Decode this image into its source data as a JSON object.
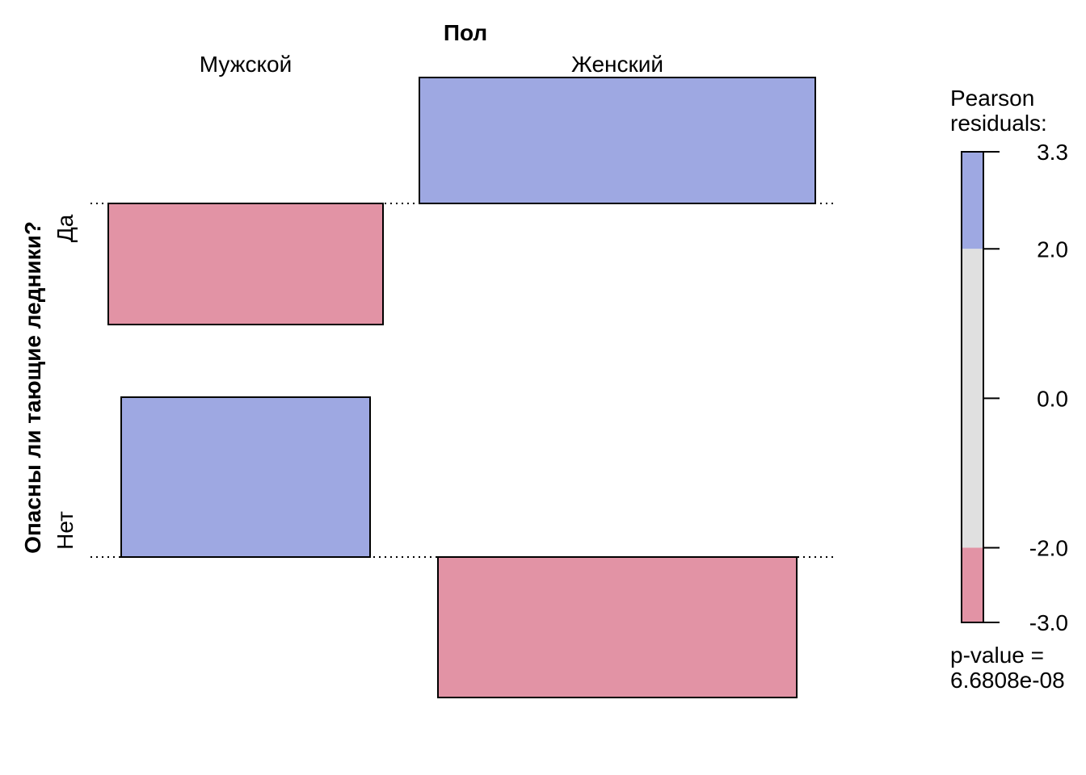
{
  "chart_data": {
    "type": "association",
    "column_variable": "Пол",
    "row_variable": "Опасны ли тающие ледники?",
    "columns": [
      "Мужской",
      "Женский"
    ],
    "rows": [
      "Да",
      "Нет"
    ],
    "cells": [
      {
        "row": "Да",
        "column": "Мужской",
        "residual": -2.5
      },
      {
        "row": "Да",
        "column": "Женский",
        "residual": 2.6
      },
      {
        "row": "Нет",
        "column": "Мужской",
        "residual": 3.3
      },
      {
        "row": "Нет",
        "column": "Женский",
        "residual": -2.9
      }
    ],
    "legend": {
      "title_lines": [
        "Pearson",
        "residuals:"
      ],
      "range": [
        -3.0,
        3.3
      ],
      "ticks": [
        {
          "value": 3.3,
          "label": "3.3"
        },
        {
          "value": 2.0,
          "label": "2.0"
        },
        {
          "value": 0.0,
          "label": "0.0"
        },
        {
          "value": -2.0,
          "label": "-2.0"
        },
        {
          "value": -3.0,
          "label": "-3.0"
        }
      ],
      "bands": [
        {
          "from": 2.0,
          "to": 3.3,
          "color": "#9ea8e2"
        },
        {
          "from": -2.0,
          "to": 2.0,
          "color": "#e0e0e0"
        },
        {
          "from": -3.0,
          "to": -2.0,
          "color": "#e293a5"
        }
      ]
    },
    "p_value_lines": [
      "p-value =",
      "6.6808e-08"
    ],
    "colors": {
      "positive": "#9ea8e2",
      "negative": "#e293a5",
      "neutral": "#e0e0e0",
      "border": "#000000"
    }
  }
}
